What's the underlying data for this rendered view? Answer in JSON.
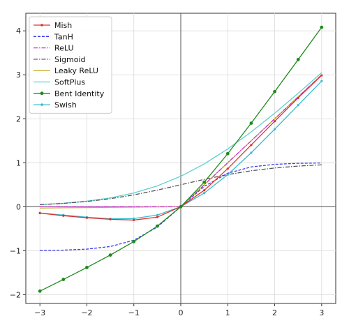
{
  "chart_data": {
    "type": "line",
    "title": "",
    "xlabel": "",
    "ylabel": "",
    "xlim": [
      -3.3,
      3.3
    ],
    "ylim": [
      -2.2,
      4.4
    ],
    "xticks": [
      -3,
      -2,
      -1,
      0,
      1,
      2,
      3
    ],
    "yticks": [
      -2,
      -1,
      0,
      1,
      2,
      3,
      4
    ],
    "x_tick_labels": [
      "−3",
      "−2",
      "−1",
      "0",
      "1",
      "2",
      "3"
    ],
    "y_tick_labels": [
      "−2",
      "−1",
      "0",
      "1",
      "2",
      "3",
      "4"
    ],
    "grid": true,
    "legend_position": "top-left",
    "x": [
      -3.0,
      -2.5,
      -2.0,
      -1.5,
      -1.0,
      -0.5,
      0.0,
      0.5,
      1.0,
      1.5,
      2.0,
      2.5,
      3.0
    ],
    "series": [
      {
        "name": "Mish",
        "color": "#e03030",
        "style": "solid-dot",
        "values": [
          -0.146,
          -0.205,
          -0.252,
          -0.286,
          -0.303,
          -0.236,
          0.0,
          0.375,
          0.865,
          1.404,
          1.944,
          2.475,
          2.987
        ]
      },
      {
        "name": "TanH",
        "color": "#3a3aef",
        "style": "dashed",
        "values": [
          -0.995,
          -0.987,
          -0.964,
          -0.905,
          -0.762,
          -0.462,
          0.0,
          0.462,
          0.762,
          0.905,
          0.964,
          0.987,
          0.995
        ]
      },
      {
        "name": "ReLU",
        "color": "#cc33cc",
        "style": "dashdot",
        "values": [
          0.0,
          0.0,
          0.0,
          0.0,
          0.0,
          0.0,
          0.0,
          0.5,
          1.0,
          1.5,
          2.0,
          2.5,
          3.0
        ]
      },
      {
        "name": "Sigmoid",
        "color": "#555555",
        "style": "dashdot",
        "values": [
          0.047,
          0.076,
          0.119,
          0.182,
          0.269,
          0.378,
          0.5,
          0.622,
          0.731,
          0.818,
          0.881,
          0.924,
          0.953
        ]
      },
      {
        "name": "Leaky ReLU",
        "color": "#c8b030",
        "style": "solid",
        "values": [
          -0.03,
          -0.025,
          -0.02,
          -0.015,
          -0.01,
          -0.005,
          0.0,
          0.5,
          1.0,
          1.5,
          2.0,
          2.5,
          3.0
        ]
      },
      {
        "name": "SoftPlus",
        "color": "#5fcfcf",
        "style": "solid",
        "values": [
          0.049,
          0.079,
          0.127,
          0.201,
          0.313,
          0.474,
          0.693,
          0.974,
          1.313,
          1.701,
          2.127,
          2.579,
          3.049
        ]
      },
      {
        "name": "Bent Identity",
        "color": "#1e8a1e",
        "style": "solid-dot-large",
        "values": [
          -1.919,
          -1.654,
          -1.382,
          -1.099,
          -0.793,
          -0.441,
          0.0,
          0.559,
          1.207,
          1.901,
          2.618,
          3.346,
          4.081
        ]
      },
      {
        "name": "Swish",
        "color": "#3bbbcc",
        "style": "solid-dot",
        "values": [
          -0.142,
          -0.189,
          -0.238,
          -0.273,
          -0.269,
          -0.189,
          0.0,
          0.311,
          0.731,
          1.227,
          1.762,
          2.311,
          2.858
        ]
      }
    ]
  }
}
